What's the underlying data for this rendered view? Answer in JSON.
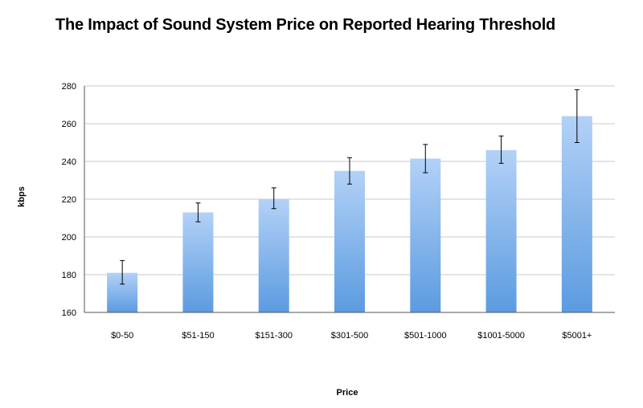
{
  "chart_data": {
    "type": "bar",
    "title": "The Impact of Sound System Price on Reported Hearing Threshold",
    "xlabel": "Price",
    "ylabel": "kbps",
    "categories": [
      "$0-50",
      "$51-150",
      "$151-300",
      "$301-500",
      "$501-1000",
      "$1001-5000",
      "$5001+"
    ],
    "values": [
      181,
      213,
      220,
      235,
      241.5,
      246,
      264
    ],
    "error_low": [
      175,
      208,
      215,
      228,
      234,
      239,
      250
    ],
    "error_high": [
      187.5,
      218,
      226,
      242,
      249,
      253.5,
      278
    ],
    "ylim": [
      160,
      280
    ],
    "yticks": [
      160,
      180,
      200,
      220,
      240,
      260,
      280
    ],
    "grid": true,
    "legend": "none",
    "colors": {
      "bar_top": "#b3d1f7",
      "bar_bottom": "#5b9be0",
      "grid": "#c8c8c8",
      "axis": "#555555"
    }
  }
}
